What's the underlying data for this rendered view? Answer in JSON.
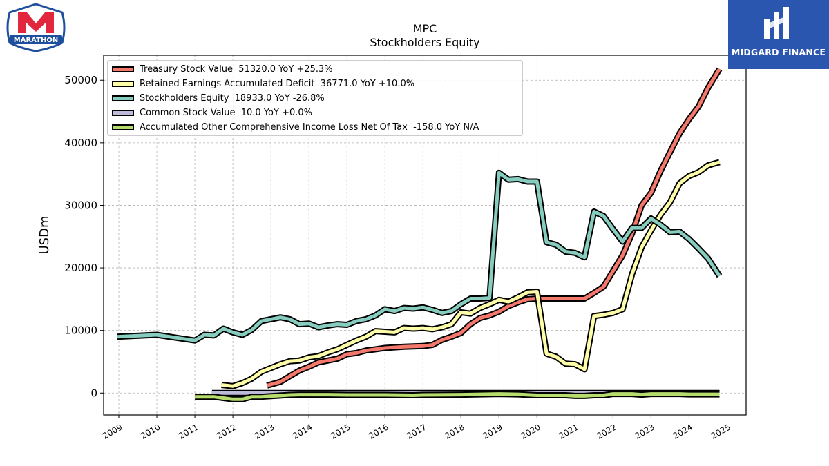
{
  "branding": {
    "left_logo_text": "MARATHON",
    "right_logo_text": "MIDGARD FINANCE"
  },
  "colors": {
    "treasury": "#f4786b",
    "retained": "#fefea8",
    "equity": "#86cdbf",
    "common": "#bebad9",
    "aoci": "#b5dc6c",
    "brand_red": "#e2263e",
    "brand_blue": "#1d4f9d",
    "midgard_blue": "#2b56b0"
  },
  "chart_data": {
    "type": "line",
    "title": "MPC",
    "subtitle": "Stockholders  Equity",
    "xlabel": "",
    "ylabel": "USDm",
    "xlim": [
      2008.6,
      2025.5
    ],
    "ylim": [
      -3500,
      54000
    ],
    "x_ticks": [
      "2009",
      "2010",
      "2011",
      "2012",
      "2013",
      "2014",
      "2015",
      "2016",
      "2017",
      "2018",
      "2019",
      "2020",
      "2021",
      "2022",
      "2023",
      "2024",
      "2025"
    ],
    "y_ticks": [
      "0",
      "10000",
      "20000",
      "30000",
      "40000",
      "50000"
    ],
    "grid": true,
    "legend_position": "top-left",
    "series": [
      {
        "name": "Treasury Stock Value",
        "legend_label": "Treasury Stock Value  51320.0 YoY +25.3%",
        "color_key": "treasury",
        "points": [
          [
            2012.9,
            1200
          ],
          [
            2013.25,
            1800
          ],
          [
            2013.5,
            2700
          ],
          [
            2013.75,
            3600
          ],
          [
            2014.0,
            4200
          ],
          [
            2014.25,
            4900
          ],
          [
            2014.5,
            5200
          ],
          [
            2014.75,
            5500
          ],
          [
            2015.0,
            6200
          ],
          [
            2015.25,
            6400
          ],
          [
            2015.5,
            6800
          ],
          [
            2015.75,
            7000
          ],
          [
            2016.0,
            7200
          ],
          [
            2016.25,
            7300
          ],
          [
            2016.5,
            7400
          ],
          [
            2016.75,
            7450
          ],
          [
            2017.0,
            7500
          ],
          [
            2017.25,
            7700
          ],
          [
            2017.5,
            8500
          ],
          [
            2017.75,
            9000
          ],
          [
            2018.0,
            9600
          ],
          [
            2018.25,
            11000
          ],
          [
            2018.5,
            12000
          ],
          [
            2018.75,
            12400
          ],
          [
            2019.0,
            13000
          ],
          [
            2019.25,
            13900
          ],
          [
            2019.5,
            14500
          ],
          [
            2019.75,
            15000
          ],
          [
            2020.0,
            15100
          ],
          [
            2020.25,
            15100
          ],
          [
            2020.5,
            15100
          ],
          [
            2020.75,
            15100
          ],
          [
            2021.0,
            15100
          ],
          [
            2021.25,
            15100
          ],
          [
            2021.5,
            16000
          ],
          [
            2021.75,
            17000
          ],
          [
            2022.0,
            19500
          ],
          [
            2022.25,
            22000
          ],
          [
            2022.5,
            25500
          ],
          [
            2022.75,
            30000
          ],
          [
            2023.0,
            32000
          ],
          [
            2023.25,
            35500
          ],
          [
            2023.5,
            38500
          ],
          [
            2023.75,
            41500
          ],
          [
            2024.0,
            43800
          ],
          [
            2024.25,
            45800
          ],
          [
            2024.5,
            48800
          ],
          [
            2024.8,
            51800
          ]
        ]
      },
      {
        "name": "Retained Earnings Accumulated Deficit",
        "legend_label": "Retained Earnings Accumulated Deficit  36771.0 YoY +10.0%",
        "color_key": "retained",
        "points": [
          [
            2011.7,
            1300
          ],
          [
            2012.0,
            1100
          ],
          [
            2012.25,
            1600
          ],
          [
            2012.5,
            2300
          ],
          [
            2012.75,
            3400
          ],
          [
            2013.0,
            4000
          ],
          [
            2013.25,
            4600
          ],
          [
            2013.5,
            5100
          ],
          [
            2013.75,
            5200
          ],
          [
            2014.0,
            5700
          ],
          [
            2014.25,
            5900
          ],
          [
            2014.5,
            6500
          ],
          [
            2014.75,
            7000
          ],
          [
            2015.0,
            7700
          ],
          [
            2015.25,
            8400
          ],
          [
            2015.5,
            9000
          ],
          [
            2015.75,
            9900
          ],
          [
            2016.0,
            9800
          ],
          [
            2016.25,
            9700
          ],
          [
            2016.5,
            10400
          ],
          [
            2016.75,
            10300
          ],
          [
            2017.0,
            10400
          ],
          [
            2017.25,
            10200
          ],
          [
            2017.5,
            10500
          ],
          [
            2017.75,
            11000
          ],
          [
            2018.0,
            12900
          ],
          [
            2018.25,
            12700
          ],
          [
            2018.5,
            13600
          ],
          [
            2018.75,
            14200
          ],
          [
            2019.0,
            14900
          ],
          [
            2019.25,
            14600
          ],
          [
            2019.5,
            15300
          ],
          [
            2019.75,
            16100
          ],
          [
            2020.0,
            16200
          ],
          [
            2020.25,
            6300
          ],
          [
            2020.5,
            5800
          ],
          [
            2020.75,
            4700
          ],
          [
            2021.0,
            4600
          ],
          [
            2021.25,
            3800
          ],
          [
            2021.5,
            12300
          ],
          [
            2021.75,
            12500
          ],
          [
            2022.0,
            12800
          ],
          [
            2022.25,
            13400
          ],
          [
            2022.5,
            19000
          ],
          [
            2022.75,
            23300
          ],
          [
            2023.0,
            26000
          ],
          [
            2023.25,
            28500
          ],
          [
            2023.5,
            30500
          ],
          [
            2023.75,
            33500
          ],
          [
            2024.0,
            34700
          ],
          [
            2024.25,
            35300
          ],
          [
            2024.5,
            36400
          ],
          [
            2024.8,
            36900
          ]
        ]
      },
      {
        "name": "Stockholders Equity",
        "legend_label": "Stockholders Equity  18933.0 YoY -26.8%",
        "color_key": "equity",
        "points": [
          [
            2008.95,
            9000
          ],
          [
            2010.0,
            9300
          ],
          [
            2011.0,
            8400
          ],
          [
            2011.25,
            9300
          ],
          [
            2011.5,
            9200
          ],
          [
            2011.75,
            10300
          ],
          [
            2012.0,
            9700
          ],
          [
            2012.25,
            9300
          ],
          [
            2012.5,
            10100
          ],
          [
            2012.75,
            11500
          ],
          [
            2013.0,
            11800
          ],
          [
            2013.25,
            12100
          ],
          [
            2013.5,
            11800
          ],
          [
            2013.75,
            11000
          ],
          [
            2014.0,
            11100
          ],
          [
            2014.25,
            10500
          ],
          [
            2014.5,
            10800
          ],
          [
            2014.75,
            11000
          ],
          [
            2015.0,
            10900
          ],
          [
            2015.25,
            11500
          ],
          [
            2015.5,
            11800
          ],
          [
            2015.75,
            12400
          ],
          [
            2016.0,
            13400
          ],
          [
            2016.25,
            13100
          ],
          [
            2016.5,
            13600
          ],
          [
            2016.75,
            13500
          ],
          [
            2017.0,
            13700
          ],
          [
            2017.25,
            13300
          ],
          [
            2017.5,
            12800
          ],
          [
            2017.75,
            13100
          ],
          [
            2018.0,
            14200
          ],
          [
            2018.25,
            15100
          ],
          [
            2018.5,
            15100
          ],
          [
            2018.75,
            15200
          ],
          [
            2019.0,
            35200
          ],
          [
            2019.25,
            34100
          ],
          [
            2019.5,
            34200
          ],
          [
            2019.75,
            33800
          ],
          [
            2020.0,
            33800
          ],
          [
            2020.25,
            24100
          ],
          [
            2020.5,
            23700
          ],
          [
            2020.75,
            22600
          ],
          [
            2021.0,
            22400
          ],
          [
            2021.25,
            21700
          ],
          [
            2021.5,
            29000
          ],
          [
            2021.75,
            28300
          ],
          [
            2022.0,
            26200
          ],
          [
            2022.25,
            24200
          ],
          [
            2022.5,
            26400
          ],
          [
            2022.75,
            26400
          ],
          [
            2023.0,
            27900
          ],
          [
            2023.25,
            26900
          ],
          [
            2023.5,
            25700
          ],
          [
            2023.75,
            25800
          ],
          [
            2024.0,
            24600
          ],
          [
            2024.25,
            23100
          ],
          [
            2024.5,
            21500
          ],
          [
            2024.8,
            18700
          ]
        ]
      },
      {
        "name": "Common Stock Value",
        "legend_label": "Common Stock Value  10.0 YoY +0.0%",
        "color_key": "common",
        "points": [
          [
            2011.45,
            10
          ],
          [
            2024.8,
            10
          ]
        ]
      },
      {
        "name": "Accumulated Other Comprehensive Income Loss Net Of Tax",
        "legend_label": "Accumulated Other Comprehensive Income Loss Net Of Tax  -158.0 YoY N/A",
        "color_key": "aoci",
        "points": [
          [
            2011.0,
            -600
          ],
          [
            2011.25,
            -600
          ],
          [
            2011.5,
            -600
          ],
          [
            2011.75,
            -800
          ],
          [
            2012.0,
            -1000
          ],
          [
            2012.25,
            -1000
          ],
          [
            2012.5,
            -600
          ],
          [
            2012.75,
            -600
          ],
          [
            2013.0,
            -500
          ],
          [
            2013.25,
            -400
          ],
          [
            2013.5,
            -300
          ],
          [
            2013.75,
            -250
          ],
          [
            2014.0,
            -250
          ],
          [
            2014.5,
            -250
          ],
          [
            2015.0,
            -300
          ],
          [
            2016.0,
            -300
          ],
          [
            2016.75,
            -350
          ],
          [
            2017.0,
            -300
          ],
          [
            2018.0,
            -250
          ],
          [
            2019.0,
            -150
          ],
          [
            2019.5,
            -200
          ],
          [
            2020.0,
            -350
          ],
          [
            2020.75,
            -350
          ],
          [
            2021.0,
            -450
          ],
          [
            2021.25,
            -450
          ],
          [
            2021.5,
            -350
          ],
          [
            2021.75,
            -350
          ],
          [
            2022.0,
            -150
          ],
          [
            2022.5,
            -150
          ],
          [
            2022.75,
            -250
          ],
          [
            2023.0,
            -150
          ],
          [
            2023.75,
            -150
          ],
          [
            2024.0,
            -200
          ],
          [
            2024.8,
            -200
          ]
        ]
      }
    ]
  }
}
